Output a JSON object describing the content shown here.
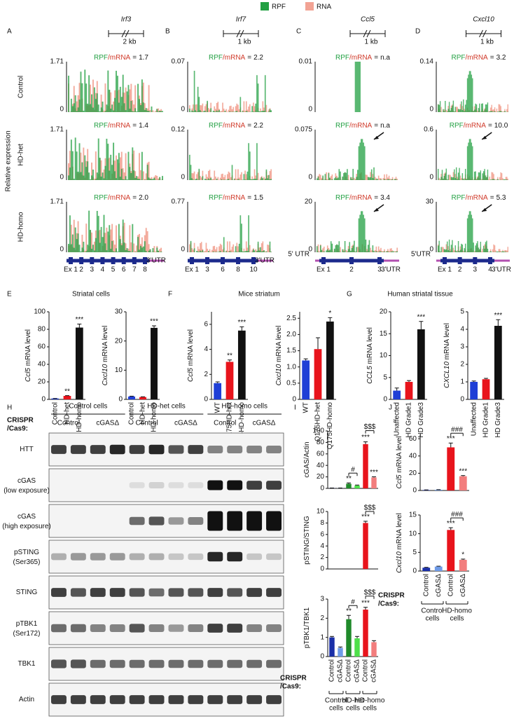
{
  "legend": [
    {
      "name": "RPF",
      "color": "#23a043"
    },
    {
      "name": "RNA",
      "color": "#f2a394"
    }
  ],
  "ratio_parts": [
    "RPF",
    "/mRNA",
    "="
  ],
  "track_ylabel": "Relative expression",
  "track_rows": [
    "Control",
    "HD-het",
    "HD-homo"
  ],
  "tracks": [
    {
      "panel": "A",
      "gene": "Irf3",
      "scale": "2 kb",
      "rows": [
        {
          "ymax": 1.71,
          "ymin": 0,
          "ratio": "1.7"
        },
        {
          "ymax": 1.71,
          "ymin": 0,
          "ratio": "1.4"
        },
        {
          "ymax": 1.71,
          "ymin": 0,
          "ratio": "2.0"
        }
      ],
      "exons": [
        "Ex 1",
        "2",
        "3",
        "4",
        "5",
        "6",
        "7",
        "8"
      ],
      "utr3": "3'UTR"
    },
    {
      "panel": "B",
      "gene": "Irf7",
      "scale": "1 kb",
      "rows": [
        {
          "ymax": 0.07,
          "ymin": 0,
          "ratio": "2.2"
        },
        {
          "ymax": 0.12,
          "ymin": 0,
          "ratio": "2.2"
        },
        {
          "ymax": 0.77,
          "ymin": 0,
          "ratio": "1.5"
        }
      ],
      "exons": [
        "Ex 1",
        "3",
        "6",
        "8",
        "10"
      ],
      "utr3": "3'UTR"
    },
    {
      "panel": "C",
      "gene": "Ccl5",
      "scale": "1 kb",
      "rows": [
        {
          "ymax": 0.01,
          "ymin": 0,
          "ratio": "n.a"
        },
        {
          "ymax": 0.075,
          "ymin": 0,
          "ratio": "n.a"
        },
        {
          "ymax": 20,
          "ymin": 0,
          "ratio": "3.4"
        }
      ],
      "utr5": "5' UTR",
      "exons": [
        "Ex 1",
        "2",
        "3"
      ],
      "utr3": "3'UTR"
    },
    {
      "panel": "D",
      "gene": "Cxcl10",
      "scale": "1 kb",
      "rows": [
        {
          "ymax": 0.14,
          "ymin": 0,
          "ratio": "3.2"
        },
        {
          "ymax": 0.6,
          "ymin": 0,
          "ratio": "10.0"
        },
        {
          "ymax": 30,
          "ymin": 0,
          "ratio": "5.3"
        }
      ],
      "utr5": "5'UTR",
      "exons": [
        "Ex 1",
        "2",
        "3",
        "4"
      ],
      "utr3": "3'UTR"
    }
  ],
  "panels": [
    {
      "letter": "E",
      "title": "Striatal cells"
    },
    {
      "letter": "F",
      "title": "Mice striatum"
    },
    {
      "letter": "G",
      "title": "Human striatal tissue"
    },
    {
      "letter": "H"
    },
    {
      "letter": "I"
    },
    {
      "letter": "J"
    }
  ],
  "blot": {
    "crispr": [
      "CRISPR",
      "/Cas9:"
    ],
    "groups": [
      "Control cells",
      "HD-het cells",
      "HD-homo cells"
    ],
    "lanes": [
      "Control",
      "cGASΔ",
      "Control",
      "cGASΔ",
      "Control",
      "cGASΔ"
    ],
    "rows": [
      {
        "name": "HTT"
      },
      {
        "name": "cGAS",
        "sub": "(low exposure)"
      },
      {
        "name": "cGAS",
        "sub": "(high exposure)"
      },
      {
        "name": "pSTING",
        "sub": "(Ser365)"
      },
      {
        "name": "STING"
      },
      {
        "name": "pTBK1",
        "sub": "(Ser172)"
      },
      {
        "name": "TBK1"
      },
      {
        "name": "Actin"
      }
    ]
  },
  "panel_i": {
    "crispr": [
      "CRISPR",
      "/Cas9:"
    ],
    "groups": [
      [
        "Control",
        "cells"
      ],
      [
        "HD-het",
        "cells"
      ],
      [
        "HD-homo",
        "cells"
      ]
    ]
  },
  "panel_j": {
    "crispr": [
      "CRISPR",
      "/Cas9:"
    ],
    "groups": [
      [
        "Control",
        "cells"
      ],
      [
        "HD-homo",
        "cells"
      ]
    ]
  },
  "chart_data": [
    {
      "type": "bar",
      "ylabel": {
        "gene": "Ccl5",
        "text": " mRNA level"
      },
      "categories": [
        "Control",
        "HD-het",
        "HD-homo"
      ],
      "values": [
        1,
        4,
        82
      ],
      "errors": [
        0.1,
        0.3,
        4
      ],
      "colors": [
        "#1f3fd6",
        "#e8141c",
        "#111111"
      ],
      "significance": [
        null,
        "**",
        "***"
      ],
      "ylim": [
        0,
        100
      ],
      "yticks": [
        0,
        20,
        40,
        60,
        80,
        100
      ]
    },
    {
      "type": "bar",
      "ylabel": {
        "gene": "Cxcl10",
        "text": " mRNA level"
      },
      "categories": [
        "Control",
        "HD-het",
        "HD-homo"
      ],
      "values": [
        1,
        0.8,
        24.5
      ],
      "errors": [
        0.1,
        0.1,
        0.7
      ],
      "colors": [
        "#1f3fd6",
        "#e8141c",
        "#111111"
      ],
      "significance": [
        null,
        null,
        "***"
      ],
      "ylim": [
        0,
        30
      ],
      "yticks": [
        0,
        10,
        20,
        30
      ]
    },
    {
      "type": "bar",
      "ylabel": {
        "gene": "Ccl5",
        "text": " mRNA level"
      },
      "categories": [
        "WT",
        "Q175HD-het",
        "Q175HD-homo"
      ],
      "values": [
        1.3,
        3.0,
        5.5
      ],
      "errors": [
        0.1,
        0.15,
        0.3
      ],
      "colors": [
        "#1f3fd6",
        "#e8141c",
        "#111111"
      ],
      "significance": [
        null,
        "**",
        "***"
      ],
      "ylim": [
        0,
        7
      ],
      "yticks": [
        0,
        2,
        4,
        6
      ]
    },
    {
      "type": "bar",
      "ylabel": {
        "gene": "Cxcl10",
        "text": " mRNA level"
      },
      "categories": [
        "WT",
        "Q175HD-het",
        "Q175HD-homo"
      ],
      "values": [
        1.2,
        1.55,
        2.4
      ],
      "errors": [
        0.05,
        0.35,
        0.12
      ],
      "colors": [
        "#1f3fd6",
        "#e8141c",
        "#111111"
      ],
      "significance": [
        null,
        null,
        "*"
      ],
      "ylim": [
        0,
        2.7
      ],
      "yticks": [
        0,
        0.5,
        {
          "value": 1,
          "label": "1.0"
        },
        1.5,
        {
          "value": 2,
          "label": "2.0"
        },
        2.5
      ]
    },
    {
      "type": "bar",
      "ylabel": {
        "gene": "CCL5",
        "text": " mRNA level"
      },
      "categories": [
        "Unaffected",
        "HD Grade1",
        "HD Grade3"
      ],
      "values": [
        2,
        4,
        16
      ],
      "errors": [
        0.6,
        0.3,
        1.8
      ],
      "colors": [
        "#1f3fd6",
        "#e8141c",
        "#111111"
      ],
      "significance": [
        null,
        null,
        "***"
      ],
      "ylim": [
        0,
        20
      ],
      "yticks": [
        0,
        5,
        10,
        15,
        20
      ]
    },
    {
      "type": "bar",
      "ylabel": {
        "gene": "CXCL10",
        "text": " mRNA level"
      },
      "categories": [
        "Unaffected",
        "HD Grade1",
        "HD Grade3"
      ],
      "values": [
        1.0,
        1.15,
        4.2
      ],
      "errors": [
        0.05,
        0.05,
        0.35
      ],
      "colors": [
        "#1f3fd6",
        "#e8141c",
        "#111111"
      ],
      "significance": [
        null,
        null,
        "***"
      ],
      "ylim": [
        0,
        5
      ],
      "yticks": [
        0,
        1,
        2,
        3,
        4,
        5
      ]
    },
    {
      "type": "bar",
      "ylabel": {
        "text": "cGAS/Actin"
      },
      "values": [
        0.5,
        0.5,
        8,
        5,
        77,
        19
      ],
      "errors": [
        0.2,
        0.2,
        1.5,
        0.8,
        4,
        1.2
      ],
      "colors": [
        "#1a2fa8",
        "#6f9be8",
        "#1f8a2a",
        "#4ee04a",
        "#e8141c",
        "#f27d7d"
      ],
      "significance": [
        null,
        null,
        "**",
        null,
        "***",
        "***"
      ],
      "brackets": [
        {
          "label": "#",
          "from": 2,
          "to": 3
        },
        {
          "label": "$$$",
          "from": 4,
          "to": 5
        }
      ],
      "ylim": [
        0,
        100
      ],
      "yticks": [
        0,
        20,
        40,
        60,
        80,
        100
      ]
    },
    {
      "type": "bar",
      "ylabel": {
        "text": "pSTING/STING"
      },
      "values": [
        0,
        0,
        0,
        0,
        8,
        0
      ],
      "errors": [
        0,
        0,
        0,
        0,
        0.3,
        0
      ],
      "colors": [
        "#1a2fa8",
        "#6f9be8",
        "#1f8a2a",
        "#4ee04a",
        "#e8141c",
        "#f27d7d"
      ],
      "significance": [
        null,
        null,
        null,
        null,
        "***",
        null
      ],
      "brackets": [
        {
          "label": "$$$",
          "from": 4,
          "to": 5
        }
      ],
      "ylim": [
        0,
        10
      ],
      "yticks": [
        0,
        2,
        4,
        6,
        8,
        10
      ]
    },
    {
      "type": "bar",
      "ylabel": {
        "text": "pTBK1/TBK1"
      },
      "categories": [
        "Control",
        "cGASΔ",
        "Control",
        "cGASΔ",
        "Control",
        "cGASΔ"
      ],
      "values": [
        1.0,
        0.45,
        1.95,
        0.95,
        2.45,
        0.75
      ],
      "errors": [
        0.05,
        0.05,
        0.2,
        0.1,
        0.12,
        0.08
      ],
      "colors": [
        "#1a2fa8",
        "#6f9be8",
        "#1f8a2a",
        "#4ee04a",
        "#e8141c",
        "#f27d7d"
      ],
      "significance": [
        null,
        null,
        "**",
        null,
        "***",
        null
      ],
      "brackets": [
        {
          "label": "#",
          "from": 2,
          "to": 3
        },
        {
          "label": "$$$",
          "from": 4,
          "to": 5
        }
      ],
      "ylim": [
        0,
        3
      ],
      "yticks": [
        0,
        1,
        2,
        3
      ]
    },
    {
      "type": "bar",
      "ylabel": {
        "gene": "Ccl5",
        "text": " mRNA level"
      },
      "values": [
        0.5,
        0.8,
        50,
        16.5
      ],
      "errors": [
        0.2,
        0.2,
        5,
        0.8
      ],
      "colors": [
        "#1a2fa8",
        "#6f9be8",
        "#e8141c",
        "#f27d7d"
      ],
      "significance": [
        null,
        null,
        "***",
        "***"
      ],
      "brackets": [
        {
          "label": "###",
          "from": 2,
          "to": 3
        }
      ],
      "ylim": [
        0,
        65
      ],
      "yticks": [
        0,
        20,
        40,
        60
      ]
    },
    {
      "type": "bar",
      "ylabel": {
        "gene": "Cxcl10",
        "text": " mRNA level"
      },
      "categories": [
        "Control",
        "cGASΔ",
        "Control",
        "cGASΔ"
      ],
      "values": [
        0.9,
        1.2,
        11,
        3
      ],
      "errors": [
        0.1,
        0.1,
        0.6,
        0.2
      ],
      "colors": [
        "#1a2fa8",
        "#6f9be8",
        "#e8141c",
        "#f27d7d"
      ],
      "significance": [
        null,
        null,
        "***",
        "*"
      ],
      "brackets": [
        {
          "label": "###",
          "from": 2,
          "to": 3
        }
      ],
      "ylim": [
        0,
        15
      ],
      "yticks": [
        0,
        5,
        10,
        15
      ]
    }
  ]
}
